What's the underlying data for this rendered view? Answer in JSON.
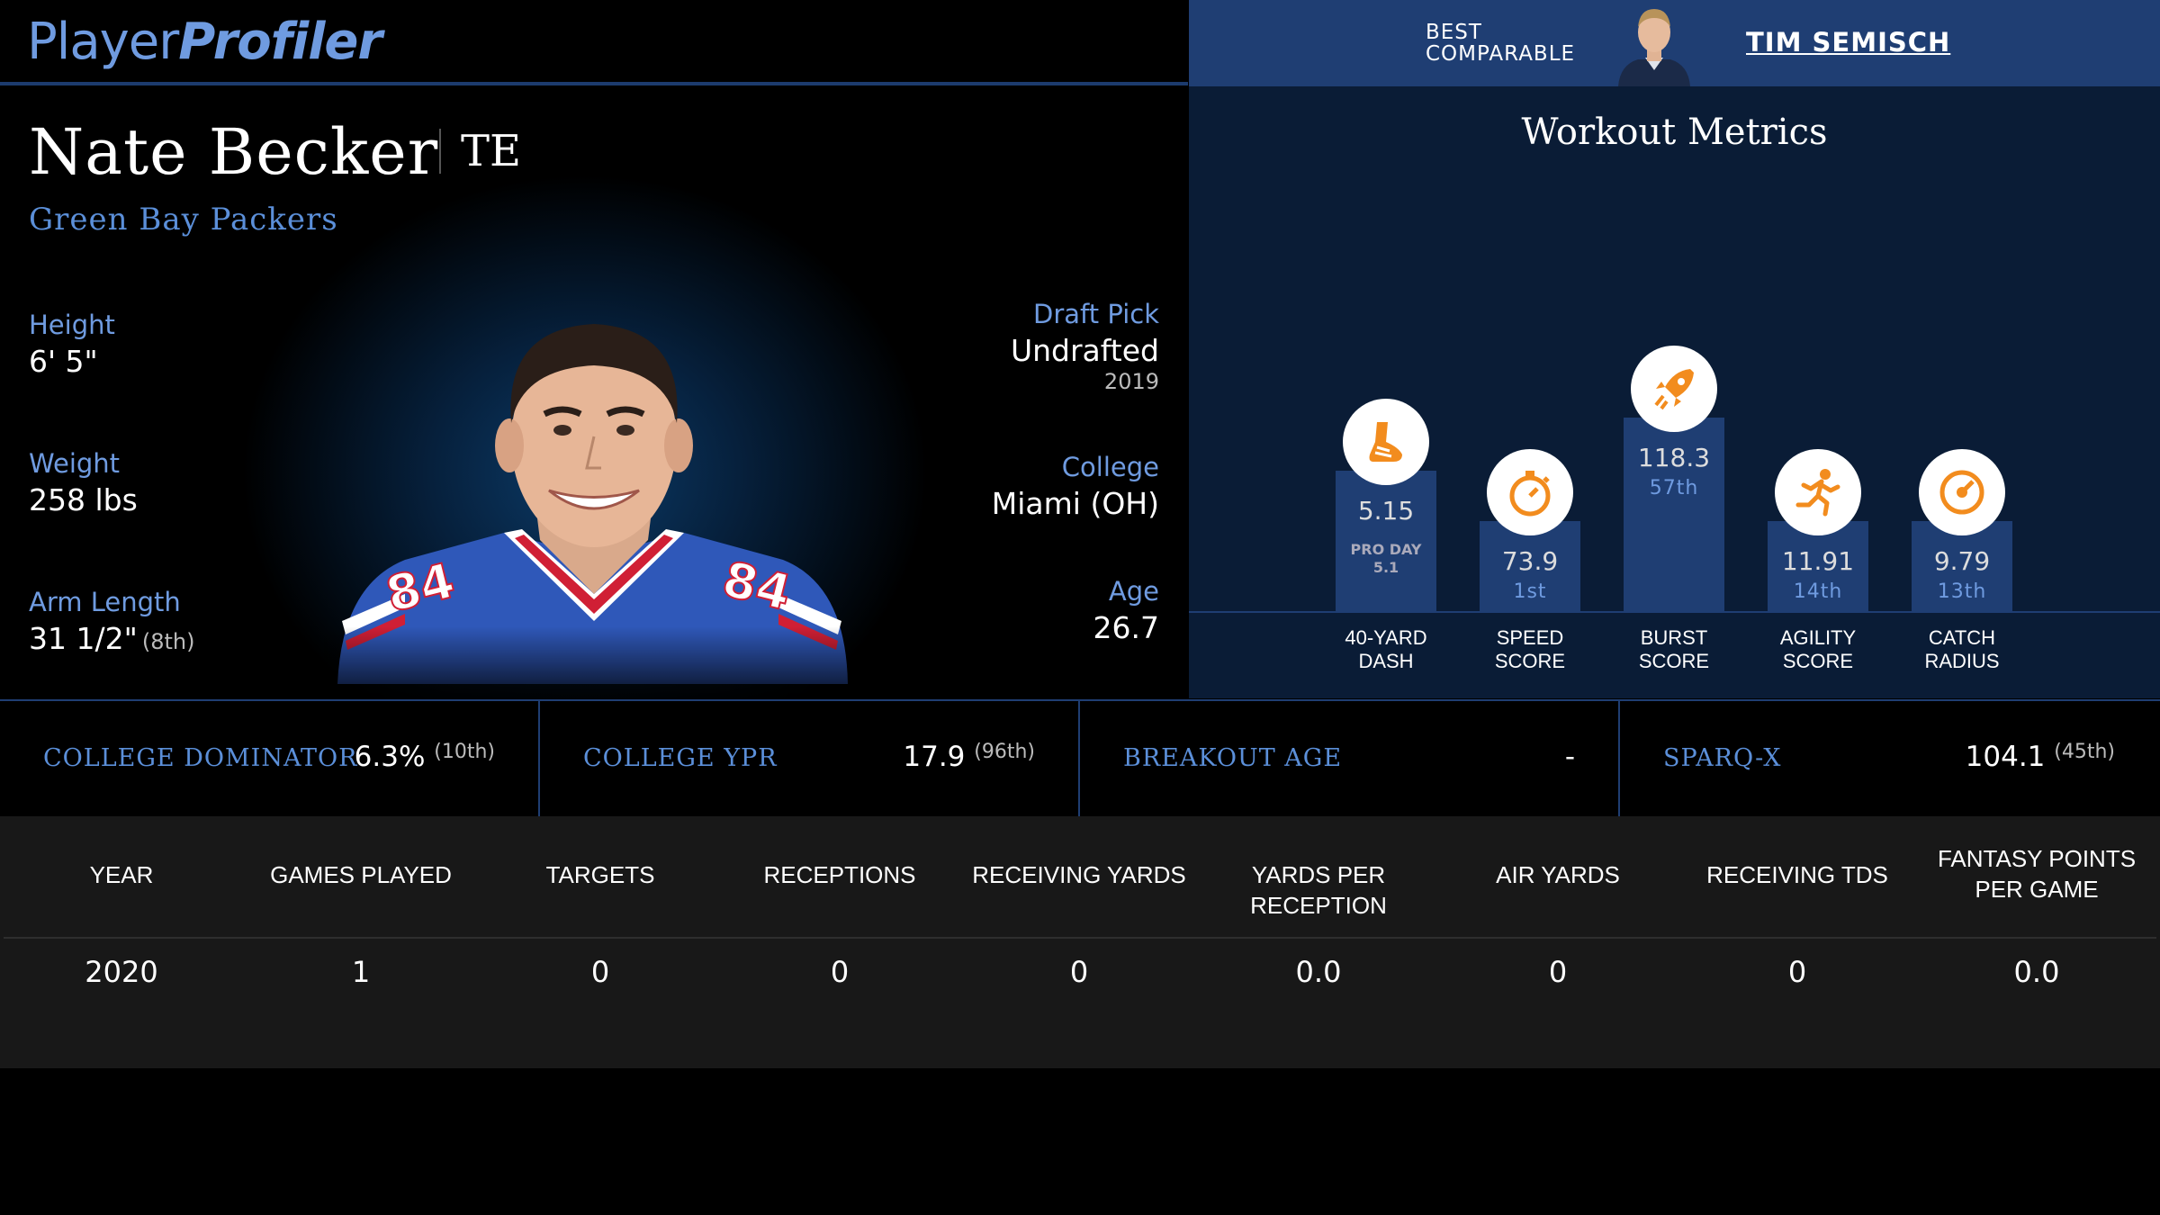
{
  "header": {
    "logo_part1": "Player",
    "logo_part2": "Profiler",
    "comparable_label": "BEST COMPARABLE",
    "comparable_name": "TIM SEMISCH"
  },
  "player": {
    "name": "Nate Becker",
    "position": "TE",
    "team": "Green Bay Packers",
    "height_label": "Height",
    "height": "6' 5\"",
    "weight_label": "Weight",
    "weight": "258 lbs",
    "arm_label": "Arm Length",
    "arm": "31 1/2\"",
    "arm_rank": "(8th)",
    "draft_label": "Draft Pick",
    "draft": "Undrafted",
    "draft_year": "2019",
    "college_label": "College",
    "college": "Miami (OH)",
    "age_label": "Age",
    "age": "26.7"
  },
  "workout": {
    "title": "Workout Metrics",
    "bars": [
      {
        "label_line1": "40-YARD",
        "label_line2": "DASH",
        "value": "5.15",
        "rank": "",
        "note_line1": "PRO DAY",
        "note_line2": "5.1",
        "icon": "shoe-icon",
        "level": 0.56
      },
      {
        "label_line1": "SPEED",
        "label_line2": "SCORE",
        "value": "73.9",
        "rank": "1st",
        "note_line1": "",
        "note_line2": "",
        "icon": "stopwatch-icon",
        "level": 0.36
      },
      {
        "label_line1": "BURST",
        "label_line2": "SCORE",
        "value": "118.3",
        "rank": "57th",
        "note_line1": "",
        "note_line2": "",
        "icon": "rocket-icon",
        "level": 0.77
      },
      {
        "label_line1": "AGILITY",
        "label_line2": "SCORE",
        "value": "11.91",
        "rank": "14th",
        "note_line1": "",
        "note_line2": "",
        "icon": "runner-icon",
        "level": 0.36
      },
      {
        "label_line1": "CATCH",
        "label_line2": "RADIUS",
        "value": "9.79",
        "rank": "13th",
        "note_line1": "",
        "note_line2": "",
        "icon": "target-icon",
        "level": 0.36
      }
    ]
  },
  "metrics": [
    {
      "name": "COLLEGE DOMINATOR",
      "value": "6.3%",
      "rank": "(10th)"
    },
    {
      "name": "COLLEGE YPR",
      "value": "17.9",
      "rank": "(96th)"
    },
    {
      "name": "BREAKOUT AGE",
      "value": "-",
      "rank": ""
    },
    {
      "name": "SPARQ-X",
      "value": "104.1",
      "rank": "(45th)"
    }
  ],
  "stats_table": {
    "headers": [
      "YEAR",
      "GAMES PLAYED",
      "TARGETS",
      "RECEPTIONS",
      "RECEIVING YARDS",
      "YARDS PER RECEPTION",
      "AIR YARDS",
      "RECEIVING TDS",
      "FANTASY POINTS PER GAME"
    ],
    "rows": [
      [
        "2020",
        "1",
        "0",
        "0",
        "0",
        "0.0",
        "0",
        "0",
        "0.0"
      ]
    ]
  },
  "colors": {
    "accent_blue": "#5b8fd9",
    "panel_blue": "#1f3e73",
    "icon_orange": "#f28c1e"
  }
}
